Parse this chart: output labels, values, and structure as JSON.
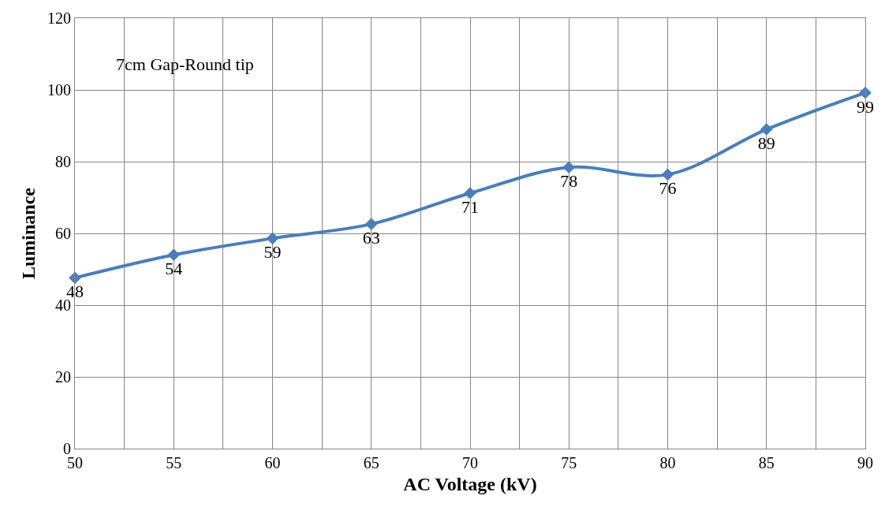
{
  "chart_data": {
    "type": "line",
    "xlabel": "AC Voltage (kV)",
    "ylabel": "Luminance",
    "annotations": [
      "7cm Gap-Round tip"
    ],
    "x": [
      50,
      55,
      60,
      65,
      70,
      75,
      80,
      85,
      90
    ],
    "series": [
      {
        "color": "#4a7ebb",
        "values": [
          47.6,
          54,
          58.6,
          62.6,
          71.2,
          78.4,
          76.4,
          89,
          99.2
        ],
        "value_labels": [
          "48",
          "54",
          "59",
          "63",
          "71",
          "78",
          "76",
          "89",
          "99"
        ]
      }
    ],
    "xlim": [
      50,
      90
    ],
    "xticks": [
      50,
      {
        "value": 52.5,
        "label": null
      },
      55,
      {
        "value": 57.5,
        "label": null
      },
      60,
      {
        "value": 62.5,
        "label": null
      },
      65,
      {
        "value": 67.5,
        "label": null
      },
      70,
      {
        "value": 72.5,
        "label": null
      },
      75,
      {
        "value": 77.5,
        "label": null
      },
      80,
      {
        "value": 82.5,
        "label": null
      },
      85,
      {
        "value": 87.5,
        "label": null
      },
      90
    ],
    "ylim": [
      0,
      120
    ],
    "yticks": [
      0,
      20,
      40,
      60,
      80,
      100,
      120
    ],
    "grid": true,
    "marker": "diamond",
    "line_style": "solid",
    "legend": false
  }
}
